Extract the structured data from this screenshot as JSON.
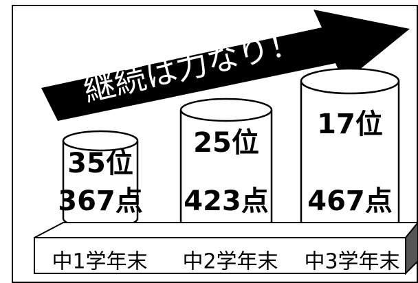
{
  "headline": "継続は力なり！",
  "items": [
    {
      "rank": "35位",
      "score": "367点",
      "label": "中1学年末"
    },
    {
      "rank": "25位",
      "score": "423点",
      "label": "中2学年末"
    },
    {
      "rank": "17位",
      "score": "467点",
      "label": "中3学年末"
    }
  ]
}
